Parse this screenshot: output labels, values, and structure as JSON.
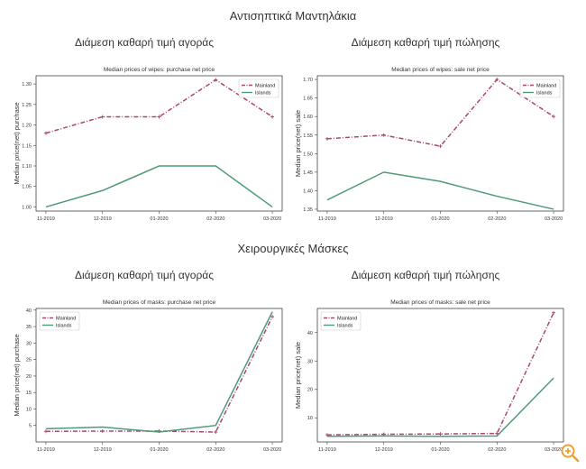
{
  "titles": {
    "wipes": "Αντισηπτικά Μαντηλάκια",
    "masks": "Χειρουργικές Μάσκες",
    "purchase_panel": "Διάμεση καθαρή τιμή αγοράς",
    "sale_panel": "Διάμεση καθαρή τιμή πώλησης"
  },
  "colors": {
    "mainland": "#a8476e",
    "islands": "#4e9a74"
  },
  "zoom_icon": "zoom-in-icon",
  "chart_data": [
    {
      "id": "wipes_purchase",
      "type": "line",
      "title": "Median prices of wipes: purchase net price",
      "xlabel": "",
      "ylabel": "Median price(net) purchase",
      "categories": [
        "11-2019",
        "12-2019",
        "01-2020",
        "02-2020",
        "03-2020"
      ],
      "ylim": [
        0.99,
        1.32
      ],
      "yticks": [
        "1.00",
        "1.05",
        "1.10",
        "1.15",
        "1.20",
        "1.25",
        "1.30"
      ],
      "legend": "top-right",
      "series": [
        {
          "name": "Mainland",
          "values": [
            1.18,
            1.22,
            1.22,
            1.31,
            1.22
          ]
        },
        {
          "name": "Islands",
          "values": [
            1.0,
            1.04,
            1.1,
            1.1,
            1.0
          ]
        }
      ]
    },
    {
      "id": "wipes_sale",
      "type": "line",
      "title": "Median prices of wipes: sale net price",
      "xlabel": "",
      "ylabel": "Median price(net) sale",
      "categories": [
        "11-2019",
        "12-2019",
        "01-2020",
        "02-2020",
        "03-2020"
      ],
      "ylim": [
        1.345,
        1.71
      ],
      "yticks": [
        "1.35",
        "1.40",
        "1.45",
        "1.50",
        "1.55",
        "1.60",
        "1.65",
        "1.70"
      ],
      "legend": "top-right",
      "series": [
        {
          "name": "Mainland",
          "values": [
            1.54,
            1.55,
            1.52,
            1.7,
            1.6
          ]
        },
        {
          "name": "Islands",
          "values": [
            1.375,
            1.45,
            1.425,
            1.385,
            1.35
          ]
        }
      ]
    },
    {
      "id": "masks_purchase",
      "type": "line",
      "title": "Median prices of masks: purchase net price",
      "xlabel": "",
      "ylabel": "Median price(net) purchase",
      "categories": [
        "11-2019",
        "12-2019",
        "01-2020",
        "02-2020",
        "03-2020"
      ],
      "ylim": [
        0,
        40.5
      ],
      "yticks": [
        "5",
        "10",
        "15",
        "20",
        "25",
        "30",
        "35",
        "40"
      ],
      "legend": "top-left",
      "series": [
        {
          "name": "Mainland",
          "values": [
            3.2,
            3.3,
            3.3,
            3.0,
            38.0
          ]
        },
        {
          "name": "Islands",
          "values": [
            4.0,
            4.5,
            3.0,
            5.0,
            39.5
          ]
        }
      ]
    },
    {
      "id": "masks_sale",
      "type": "line",
      "title": "Median prices of masks: sale net price",
      "xlabel": "",
      "ylabel": "Median price(net) sale",
      "categories": [
        "11-2019",
        "12-2019",
        "01-2020",
        "02-2020",
        "03-2020"
      ],
      "ylim": [
        1.5,
        48.5
      ],
      "yticks": [
        "10",
        "20",
        "30",
        "40"
      ],
      "legend": "top-left",
      "series": [
        {
          "name": "Mainland",
          "values": [
            4.0,
            4.2,
            4.3,
            4.5,
            47.0
          ]
        },
        {
          "name": "Islands",
          "values": [
            3.5,
            3.6,
            3.5,
            3.6,
            24.0
          ]
        }
      ]
    }
  ]
}
